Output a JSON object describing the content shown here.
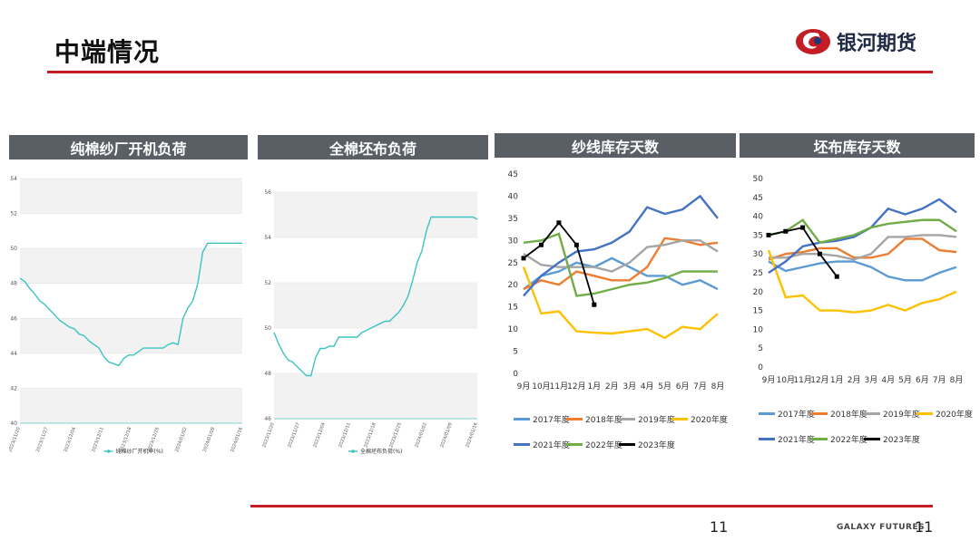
{
  "page": {
    "title": "中端情况",
    "logo_text": "银河期货",
    "page_number": "11",
    "footer_brand": "GALAXY FUTURES",
    "footer_number": "11",
    "accent_color": "#c41e24"
  },
  "panels": [
    {
      "header": "纯棉纱厂开机负荷"
    },
    {
      "header": "全棉坯布负荷"
    },
    {
      "header": "纱线库存天数"
    },
    {
      "header": "坯布库存天数"
    }
  ],
  "legend_colors": {
    "2017年度": "#5b9bd5",
    "2018年度": "#ed7d31",
    "2019年度": "#a5a5a5",
    "2020年度": "#ffc000",
    "2021年度": "#4472c4",
    "2022年度": "#70ad47",
    "2023年度": "#000000"
  },
  "chart_data": [
    {
      "type": "line",
      "ylim": [
        40,
        54
      ],
      "yticks": [
        "40",
        "42",
        "44",
        "46",
        "48",
        "50",
        "52",
        "54"
      ],
      "xticks": [
        "2023/11/20",
        "2023/11/27",
        "2023/12/04",
        "2023/12/11",
        "2023/12/18",
        "2023/12/25",
        "2024/01/02",
        "2024/01/09",
        "2024/01/16"
      ],
      "legend": "纯棉纱厂开机率(%)",
      "color": "#3cc3c3",
      "series": [
        {
          "values": [
            48.3,
            48.1,
            47.7,
            47.4,
            47.0,
            46.8,
            46.5,
            46.2,
            45.9,
            45.7,
            45.5,
            45.4,
            45.1,
            45.0,
            44.7,
            44.5,
            44.3,
            43.8,
            43.5,
            43.4,
            43.3,
            43.7,
            43.9,
            43.9,
            44.1,
            44.3,
            44.3,
            44.3,
            44.3,
            44.3,
            44.5,
            44.6,
            44.5,
            46.0,
            46.6,
            47.0,
            48.0,
            49.8,
            50.3,
            50.3,
            50.3,
            50.3,
            50.3,
            50.3,
            50.3,
            50.3
          ]
        }
      ]
    },
    {
      "type": "line",
      "ylim": [
        46,
        56
      ],
      "yticks": [
        "46",
        "48",
        "50",
        "52",
        "54",
        "56"
      ],
      "xticks": [
        "2023/11/20",
        "2023/11/27",
        "2023/12/04",
        "2023/12/11",
        "2023/12/18",
        "2023/12/25",
        "2024/01/02",
        "2024/01/09",
        "2024/01/16"
      ],
      "legend": "全棉坯布负荷(%)",
      "color": "#3cc3c3",
      "series": [
        {
          "values": [
            49.8,
            49.3,
            48.9,
            48.6,
            48.5,
            48.3,
            48.1,
            47.9,
            47.9,
            48.7,
            49.1,
            49.1,
            49.2,
            49.2,
            49.6,
            49.6,
            49.6,
            49.6,
            49.6,
            49.8,
            49.9,
            50.0,
            50.1,
            50.2,
            50.3,
            50.3,
            50.5,
            50.7,
            51.0,
            51.4,
            52.1,
            52.9,
            53.4,
            54.3,
            54.9,
            54.9,
            54.9,
            54.9,
            54.9,
            54.9,
            54.9,
            54.9,
            54.9,
            54.9,
            54.8
          ]
        }
      ]
    },
    {
      "type": "line",
      "ylim": [
        0,
        45
      ],
      "yticks": [
        "0",
        "5",
        "10",
        "15",
        "20",
        "25",
        "30",
        "35",
        "40",
        "45"
      ],
      "categories": [
        "9月",
        "10月",
        "11月",
        "12月",
        "1月",
        "2月",
        "3月",
        "4月",
        "5月",
        "6月",
        "7月",
        "8月"
      ],
      "series": [
        {
          "name": "2017年度",
          "values": [
            19.0,
            22.0,
            23.0,
            25.0,
            24.0,
            26.0,
            24.0,
            22.0,
            22.0,
            20.0,
            21.0,
            19.0
          ]
        },
        {
          "name": "2018年度",
          "values": [
            19.0,
            21.0,
            20.0,
            23.0,
            22.0,
            21.0,
            21.0,
            24.0,
            30.5,
            30.0,
            29.0,
            29.5
          ]
        },
        {
          "name": "2019年度",
          "values": [
            27.0,
            24.5,
            24.0,
            24.0,
            24.0,
            23.0,
            25.0,
            28.5,
            29.0,
            30.0,
            30.0,
            27.5
          ]
        },
        {
          "name": "2020年度",
          "values": [
            24.0,
            13.5,
            14.0,
            9.5,
            9.2,
            9.0,
            9.5,
            10.0,
            8.0,
            10.5,
            10.0,
            13.5
          ]
        },
        {
          "name": "2021年度",
          "values": [
            17.5,
            22.0,
            25.0,
            27.5,
            28.0,
            29.5,
            32.0,
            37.5,
            36.0,
            37.0,
            40.0,
            35.0
          ]
        },
        {
          "name": "2022年度",
          "values": [
            29.5,
            30.0,
            31.5,
            17.5,
            18.0,
            19.0,
            20.0,
            20.5,
            21.5,
            23.0,
            23.0,
            23.0
          ]
        },
        {
          "name": "2023年度",
          "values": [
            26.0,
            29.0,
            34.0,
            29.0,
            15.5,
            null,
            null,
            null,
            null,
            null,
            null,
            null
          ]
        }
      ]
    },
    {
      "type": "line",
      "ylim": [
        0,
        50
      ],
      "yticks": [
        "0",
        "5",
        "10",
        "15",
        "20",
        "25",
        "30",
        "35",
        "40",
        "45",
        "50"
      ],
      "categories": [
        "9月",
        "10月",
        "11月",
        "12月",
        "1月",
        "2月",
        "3月",
        "4月",
        "5月",
        "6月",
        "7月",
        "8月"
      ],
      "series": [
        {
          "name": "2017年度",
          "values": [
            28.0,
            25.5,
            26.5,
            27.5,
            28.0,
            28.0,
            26.5,
            24.0,
            23.0,
            23.0,
            25.0,
            26.5
          ]
        },
        {
          "name": "2018年度",
          "values": [
            28.5,
            30.0,
            30.5,
            31.5,
            31.5,
            29.0,
            29.0,
            30.0,
            34.0,
            34.0,
            31.0,
            30.5
          ]
        },
        {
          "name": "2019年度",
          "values": [
            29.0,
            29.0,
            30.0,
            30.0,
            29.5,
            28.5,
            30.0,
            34.5,
            34.5,
            35.0,
            35.0,
            34.5
          ]
        },
        {
          "name": "2020年度",
          "values": [
            31.0,
            18.5,
            19.0,
            15.0,
            15.0,
            14.5,
            15.0,
            16.5,
            15.0,
            17.0,
            18.0,
            20.0
          ]
        },
        {
          "name": "2021年度",
          "values": [
            25.0,
            28.0,
            32.0,
            33.0,
            33.5,
            34.5,
            37.0,
            42.0,
            40.5,
            42.0,
            44.5,
            41.0
          ]
        },
        {
          "name": "2022年度",
          "values": [
            35.0,
            36.0,
            39.0,
            33.0,
            34.0,
            35.0,
            37.0,
            38.0,
            38.5,
            39.0,
            39.0,
            36.0
          ]
        },
        {
          "name": "2023年度",
          "values": [
            35.0,
            36.0,
            37.0,
            30.0,
            24.0,
            null,
            null,
            null,
            null,
            null,
            null,
            null
          ]
        }
      ]
    }
  ]
}
